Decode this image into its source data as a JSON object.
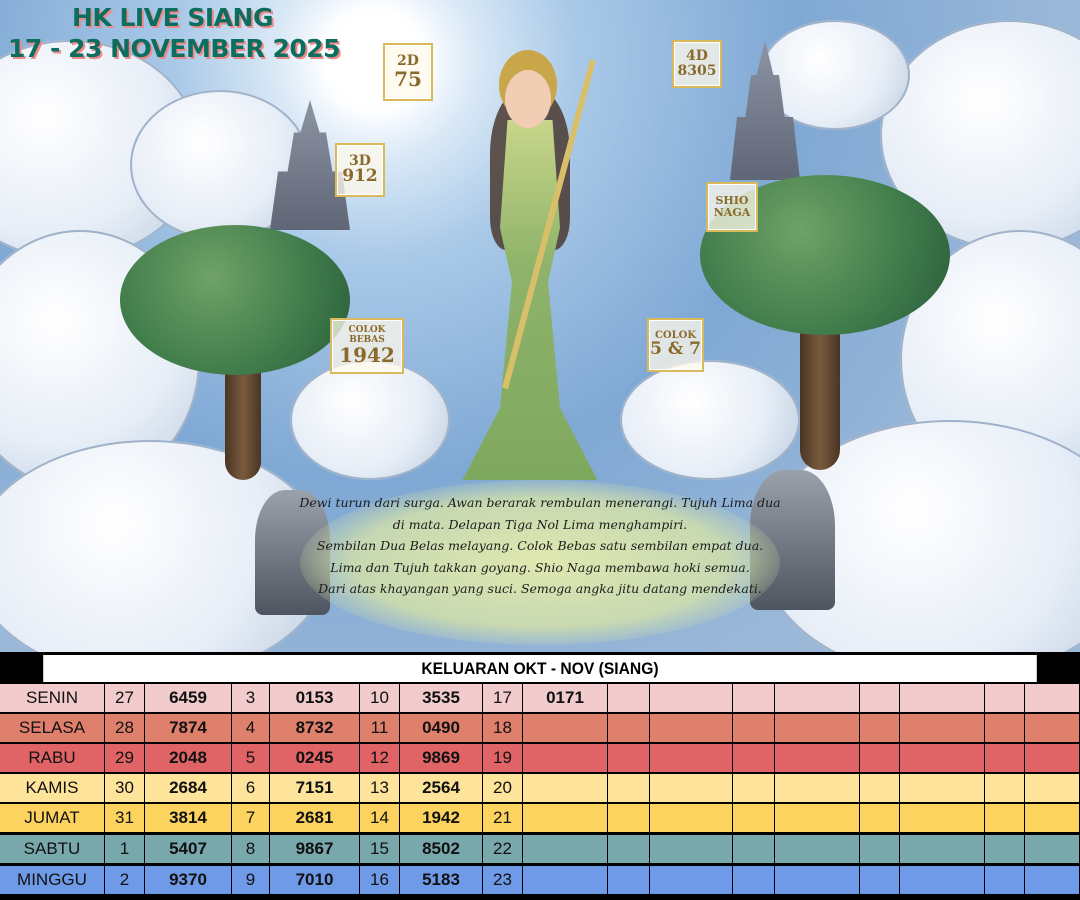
{
  "poster": {
    "title_line1": "HK LIVE SIANG",
    "title_line2": "17 - 23 NOVEMBER 2025",
    "badges": {
      "d2": {
        "label": "2D",
        "value": "75"
      },
      "d4": {
        "label": "4D",
        "value": "8305"
      },
      "d3": {
        "label": "3D",
        "value": "912"
      },
      "shio": {
        "label": "SHIO",
        "value": "NAGA"
      },
      "colok_bebas": {
        "label": "COLOK BEBAS",
        "value": "1942"
      },
      "colok": {
        "label": "COLOK",
        "value": "5 & 7"
      }
    },
    "poem": [
      "Dewi turun dari surga. Awan berarak rembulan menerangi. Tujuh Lima dua",
      "di mata. Delapan Tiga Nol Lima menghampiri.",
      "Sembilan Dua Belas melayang. Colok Bebas satu sembilan empat dua.",
      "Lima dan Tujuh takkan goyang. Shio Naga membawa hoki semua.",
      "Dari atas khayangan yang suci. Semoga angka jitu datang mendekati."
    ]
  },
  "table": {
    "title": "KELUARAN OKT - NOV (SIANG)",
    "rows": [
      {
        "day": "SENIN",
        "color": "#f2cbcd",
        "cells": [
          "27",
          "6459",
          "3",
          "0153",
          "10",
          "3535",
          "17",
          "0171"
        ]
      },
      {
        "day": "SELASA",
        "color": "#df806d",
        "cells": [
          "28",
          "7874",
          "4",
          "8732",
          "11",
          "0490",
          "18",
          ""
        ]
      },
      {
        "day": "RABU",
        "color": "#e06466",
        "cells": [
          "29",
          "2048",
          "5",
          "0245",
          "12",
          "9869",
          "19",
          ""
        ]
      },
      {
        "day": "KAMIS",
        "color": "#fde49a",
        "cells": [
          "30",
          "2684",
          "6",
          "7151",
          "13",
          "2564",
          "20",
          ""
        ]
      },
      {
        "day": "JUMAT",
        "color": "#fdd35f",
        "cells": [
          "31",
          "3814",
          "7",
          "2681",
          "14",
          "1942",
          "21",
          ""
        ]
      },
      {
        "day": "SABTU",
        "color": "#78a7ac",
        "cells": [
          "1",
          "5407",
          "8",
          "9867",
          "15",
          "8502",
          "22",
          ""
        ]
      },
      {
        "day": "MINGGU",
        "color": "#6e9ae8",
        "cells": [
          "2",
          "9370",
          "9",
          "7010",
          "16",
          "5183",
          "23",
          ""
        ]
      }
    ]
  }
}
